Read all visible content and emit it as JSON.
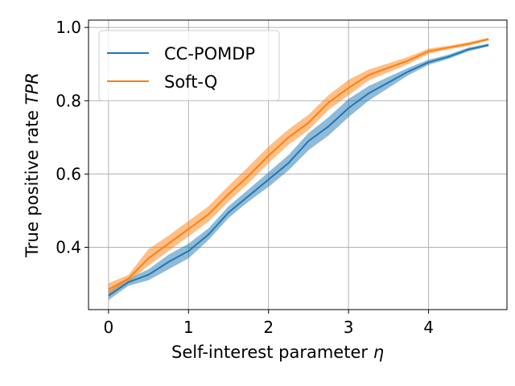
{
  "chart_data": {
    "type": "line",
    "xlabel": "Self-interest parameter η",
    "xlabel_prefix": "Self-interest parameter ",
    "xlabel_symbol": "η",
    "ylabel": "True positive rate TPR",
    "ylabel_prefix": "True positive rate ",
    "ylabel_symbol": "TPR",
    "xlim": [
      -0.25,
      4.98
    ],
    "ylim": [
      0.23,
      1.02
    ],
    "xticks": [
      0,
      1,
      2,
      3,
      4
    ],
    "xtick_labels": [
      "0",
      "1",
      "2",
      "3",
      "4"
    ],
    "yticks": [
      0.4,
      0.6,
      0.8,
      1.0
    ],
    "ytick_labels": [
      "0.4",
      "0.6",
      "0.8",
      "1.0"
    ],
    "grid": true,
    "legend_position": "top-left",
    "x": [
      0,
      0.25,
      0.5,
      0.75,
      1.0,
      1.25,
      1.5,
      1.75,
      2.0,
      2.25,
      2.5,
      2.75,
      3.0,
      3.25,
      3.5,
      3.75,
      4.0,
      4.25,
      4.5,
      4.75
    ],
    "series": [
      {
        "name": "CC-POMDP",
        "color": "#1f77b4",
        "values": [
          0.268,
          0.305,
          0.325,
          0.36,
          0.39,
          0.435,
          0.495,
          0.54,
          0.585,
          0.63,
          0.69,
          0.73,
          0.78,
          0.82,
          0.85,
          0.88,
          0.905,
          0.92,
          0.94,
          0.952
        ],
        "lower": [
          0.256,
          0.295,
          0.31,
          0.34,
          0.37,
          0.42,
          0.48,
          0.525,
          0.565,
          0.61,
          0.665,
          0.705,
          0.755,
          0.8,
          0.835,
          0.87,
          0.898,
          0.914,
          0.935,
          0.948
        ],
        "upper": [
          0.28,
          0.315,
          0.34,
          0.38,
          0.41,
          0.452,
          0.512,
          0.558,
          0.605,
          0.652,
          0.712,
          0.755,
          0.805,
          0.84,
          0.865,
          0.89,
          0.912,
          0.926,
          0.945,
          0.956
        ]
      },
      {
        "name": "Soft-Q",
        "color": "#ff7f0e",
        "values": [
          0.285,
          0.315,
          0.37,
          0.41,
          0.45,
          0.49,
          0.545,
          0.595,
          0.65,
          0.7,
          0.74,
          0.795,
          0.835,
          0.87,
          0.89,
          0.91,
          0.935,
          0.945,
          0.955,
          0.968
        ],
        "lower": [
          0.27,
          0.305,
          0.35,
          0.39,
          0.43,
          0.47,
          0.525,
          0.575,
          0.63,
          0.68,
          0.72,
          0.775,
          0.815,
          0.855,
          0.878,
          0.9,
          0.928,
          0.94,
          0.95,
          0.964
        ],
        "upper": [
          0.302,
          0.325,
          0.395,
          0.432,
          0.472,
          0.512,
          0.568,
          0.62,
          0.675,
          0.722,
          0.762,
          0.815,
          0.857,
          0.885,
          0.902,
          0.92,
          0.942,
          0.95,
          0.96,
          0.972
        ]
      }
    ]
  }
}
